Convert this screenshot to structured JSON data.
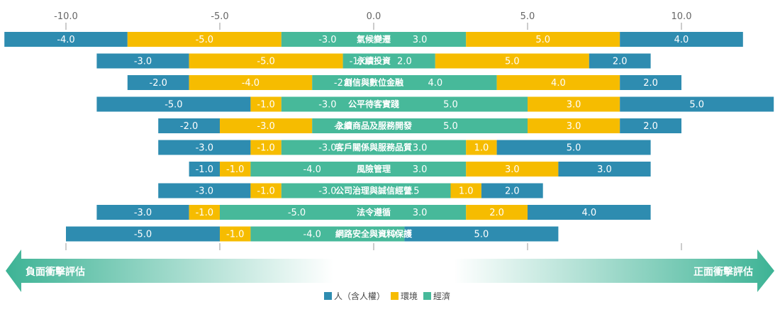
{
  "chart_data": {
    "type": "bar",
    "subtype": "diverging-stacked-horizontal",
    "title": "",
    "xlim": [
      -10.0,
      10.0
    ],
    "xticks": [
      -10.0,
      -5.0,
      0.0,
      5.0,
      10.0
    ],
    "xtick_labels": [
      "-10.0",
      "-5.0",
      "0.0",
      "5.0",
      "10.0"
    ],
    "series_order_negative": [
      "people",
      "environment",
      "economy"
    ],
    "series_order_positive": [
      "economy",
      "environment",
      "people"
    ],
    "series": [
      {
        "key": "people",
        "name": "人（含人權）",
        "color": "#2E8CB0"
      },
      {
        "key": "environment",
        "name": "環境",
        "color": "#F6BC00"
      },
      {
        "key": "economy",
        "name": "經濟",
        "color": "#47B99A"
      }
    ],
    "categories": [
      "氣候變遷",
      "永續投資",
      "創信與數位金融",
      "公平待客實踐",
      "永續商品及服務開發",
      "客戶關係與服務品質",
      "風險管理",
      "公司治理與誠信經營",
      "法令遵循",
      "網路安全與資料保護"
    ],
    "negative": {
      "people": [
        -4.0,
        -3.0,
        -2.0,
        -5.0,
        -2.0,
        -3.0,
        -1.0,
        -3.0,
        -3.0,
        -5.0
      ],
      "environment": [
        -5.0,
        -5.0,
        -4.0,
        -1.0,
        -3.0,
        -1.0,
        -1.0,
        -1.0,
        -1.0,
        -1.0
      ],
      "economy": [
        -3.0,
        -1.0,
        -2.0,
        -3.0,
        -2.0,
        -3.0,
        -4.0,
        -3.0,
        -5.0,
        -4.0
      ]
    },
    "positive": {
      "economy": [
        3.0,
        2.0,
        4.0,
        5.0,
        5.0,
        3.0,
        3.0,
        2.5,
        3.0,
        1.0
      ],
      "environment": [
        5.0,
        5.0,
        4.0,
        3.0,
        3.0,
        1.0,
        3.0,
        1.0,
        2.0,
        0.0
      ],
      "people": [
        4.0,
        2.0,
        2.0,
        5.0,
        2.0,
        5.0,
        3.0,
        2.0,
        4.0,
        5.0
      ]
    },
    "left_arrow_label": "負面衝擊評估",
    "right_arrow_label": "正面衝擊評估"
  },
  "legend": {
    "items": [
      {
        "label": "人（含人權）",
        "color": "#2E8CB0"
      },
      {
        "label": "環境",
        "color": "#F6BC00"
      },
      {
        "label": "經濟",
        "color": "#47B99A"
      }
    ]
  },
  "colors": {
    "tick_line": "#9a9a9a",
    "arrow": "#3DB395"
  }
}
